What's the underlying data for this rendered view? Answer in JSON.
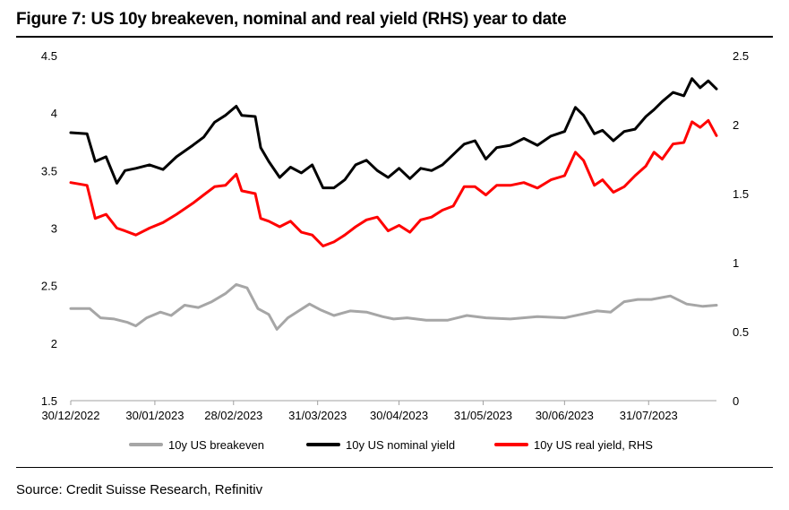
{
  "title": "Figure 7: US 10y breakeven, nominal and real yield (RHS) year to date",
  "source": "Source: Credit Suisse Research, Refinitiv",
  "colors": {
    "breakeven": "#a6a6a6",
    "nominal": "#000000",
    "real": "#ff0000"
  },
  "chart_data": {
    "type": "line",
    "xlabel": "",
    "ylabel": "",
    "x_tick_labels": [
      "30/12/2022",
      "30/01/2023",
      "28/02/2023",
      "31/03/2023",
      "30/04/2023",
      "31/05/2023",
      "30/06/2023",
      "31/07/2023"
    ],
    "x_range": [
      "30/12/2022",
      "25/08/2023"
    ],
    "ylim_left": [
      1.5,
      4.5
    ],
    "yticks_left": [
      "1.5",
      "2",
      "2.5",
      "3",
      "3.5",
      "4",
      "4.5"
    ],
    "ylim_right": [
      0,
      2.5
    ],
    "yticks_right": [
      "0",
      "0.5",
      "1",
      "1.5",
      "2",
      "2.5"
    ],
    "grid": false,
    "legend_position": "bottom",
    "series": [
      {
        "name": "10y US breakeven",
        "axis": "left",
        "x": [
          "2022-12-30",
          "2023-01-06",
          "2023-01-10",
          "2023-01-15",
          "2023-01-20",
          "2023-01-23",
          "2023-01-27",
          "2023-02-01",
          "2023-02-05",
          "2023-02-10",
          "2023-02-15",
          "2023-02-20",
          "2023-02-25",
          "2023-03-01",
          "2023-03-05",
          "2023-03-09",
          "2023-03-13",
          "2023-03-16",
          "2023-03-20",
          "2023-03-24",
          "2023-03-28",
          "2023-04-01",
          "2023-04-06",
          "2023-04-12",
          "2023-04-18",
          "2023-04-24",
          "2023-04-28",
          "2023-05-03",
          "2023-05-10",
          "2023-05-18",
          "2023-05-25",
          "2023-06-01",
          "2023-06-10",
          "2023-06-20",
          "2023-06-30",
          "2023-07-06",
          "2023-07-12",
          "2023-07-17",
          "2023-07-22",
          "2023-07-27",
          "2023-08-01",
          "2023-08-08",
          "2023-08-14",
          "2023-08-20",
          "2023-08-25"
        ],
        "y": [
          2.3,
          2.3,
          2.22,
          2.21,
          2.18,
          2.15,
          2.22,
          2.27,
          2.24,
          2.33,
          2.31,
          2.36,
          2.43,
          2.51,
          2.48,
          2.3,
          2.25,
          2.12,
          2.22,
          2.28,
          2.34,
          2.29,
          2.24,
          2.28,
          2.27,
          2.23,
          2.21,
          2.22,
          2.2,
          2.2,
          2.24,
          2.22,
          2.21,
          2.23,
          2.22,
          2.25,
          2.28,
          2.27,
          2.36,
          2.38,
          2.38,
          2.41,
          2.34,
          2.32,
          2.33
        ]
      },
      {
        "name": "10y US nominal yield",
        "axis": "left",
        "x": [
          "2022-12-30",
          "2023-01-05",
          "2023-01-08",
          "2023-01-12",
          "2023-01-16",
          "2023-01-19",
          "2023-01-23",
          "2023-01-28",
          "2023-02-02",
          "2023-02-07",
          "2023-02-13",
          "2023-02-17",
          "2023-02-21",
          "2023-02-25",
          "2023-03-01",
          "2023-03-03",
          "2023-03-08",
          "2023-03-10",
          "2023-03-13",
          "2023-03-17",
          "2023-03-21",
          "2023-03-25",
          "2023-03-29",
          "2023-04-02",
          "2023-04-06",
          "2023-04-10",
          "2023-04-14",
          "2023-04-18",
          "2023-04-22",
          "2023-04-26",
          "2023-04-30",
          "2023-05-04",
          "2023-05-08",
          "2023-05-12",
          "2023-05-16",
          "2023-05-20",
          "2023-05-24",
          "2023-05-28",
          "2023-06-01",
          "2023-06-05",
          "2023-06-10",
          "2023-06-15",
          "2023-06-20",
          "2023-06-25",
          "2023-06-30",
          "2023-07-04",
          "2023-07-07",
          "2023-07-11",
          "2023-07-14",
          "2023-07-18",
          "2023-07-22",
          "2023-07-26",
          "2023-07-30",
          "2023-08-02",
          "2023-08-05",
          "2023-08-09",
          "2023-08-13",
          "2023-08-16",
          "2023-08-19",
          "2023-08-22",
          "2023-08-25"
        ],
        "y": [
          3.83,
          3.82,
          3.58,
          3.62,
          3.39,
          3.5,
          3.52,
          3.55,
          3.51,
          3.62,
          3.72,
          3.79,
          3.92,
          3.98,
          4.06,
          3.98,
          3.97,
          3.7,
          3.58,
          3.44,
          3.53,
          3.48,
          3.55,
          3.35,
          3.35,
          3.42,
          3.55,
          3.59,
          3.5,
          3.44,
          3.52,
          3.43,
          3.52,
          3.5,
          3.55,
          3.64,
          3.73,
          3.76,
          3.6,
          3.7,
          3.72,
          3.78,
          3.72,
          3.8,
          3.84,
          4.05,
          3.98,
          3.82,
          3.85,
          3.76,
          3.84,
          3.86,
          3.97,
          4.03,
          4.1,
          4.18,
          4.15,
          4.3,
          4.22,
          4.28,
          4.21
        ]
      },
      {
        "name": "10y US real yield, RHS",
        "axis": "right",
        "x": [
          "2022-12-30",
          "2023-01-05",
          "2023-01-08",
          "2023-01-12",
          "2023-01-16",
          "2023-01-19",
          "2023-01-23",
          "2023-01-28",
          "2023-02-02",
          "2023-02-07",
          "2023-02-13",
          "2023-02-17",
          "2023-02-21",
          "2023-02-25",
          "2023-03-01",
          "2023-03-03",
          "2023-03-08",
          "2023-03-10",
          "2023-03-13",
          "2023-03-17",
          "2023-03-21",
          "2023-03-25",
          "2023-03-29",
          "2023-04-02",
          "2023-04-06",
          "2023-04-10",
          "2023-04-14",
          "2023-04-18",
          "2023-04-22",
          "2023-04-26",
          "2023-04-30",
          "2023-05-04",
          "2023-05-08",
          "2023-05-12",
          "2023-05-16",
          "2023-05-20",
          "2023-05-24",
          "2023-05-28",
          "2023-06-01",
          "2023-06-05",
          "2023-06-10",
          "2023-06-15",
          "2023-06-20",
          "2023-06-25",
          "2023-06-30",
          "2023-07-04",
          "2023-07-07",
          "2023-07-11",
          "2023-07-14",
          "2023-07-18",
          "2023-07-22",
          "2023-07-26",
          "2023-07-30",
          "2023-08-02",
          "2023-08-05",
          "2023-08-09",
          "2023-08-13",
          "2023-08-16",
          "2023-08-19",
          "2023-08-22",
          "2023-08-25"
        ],
        "y": [
          1.58,
          1.56,
          1.32,
          1.35,
          1.25,
          1.23,
          1.2,
          1.25,
          1.29,
          1.35,
          1.43,
          1.49,
          1.55,
          1.56,
          1.64,
          1.52,
          1.5,
          1.32,
          1.3,
          1.26,
          1.3,
          1.22,
          1.2,
          1.12,
          1.15,
          1.2,
          1.26,
          1.31,
          1.33,
          1.23,
          1.27,
          1.22,
          1.31,
          1.33,
          1.38,
          1.41,
          1.55,
          1.55,
          1.49,
          1.56,
          1.56,
          1.58,
          1.54,
          1.6,
          1.63,
          1.8,
          1.74,
          1.56,
          1.6,
          1.51,
          1.55,
          1.63,
          1.7,
          1.8,
          1.75,
          1.86,
          1.87,
          2.02,
          1.98,
          2.03,
          1.92
        ]
      }
    ]
  }
}
